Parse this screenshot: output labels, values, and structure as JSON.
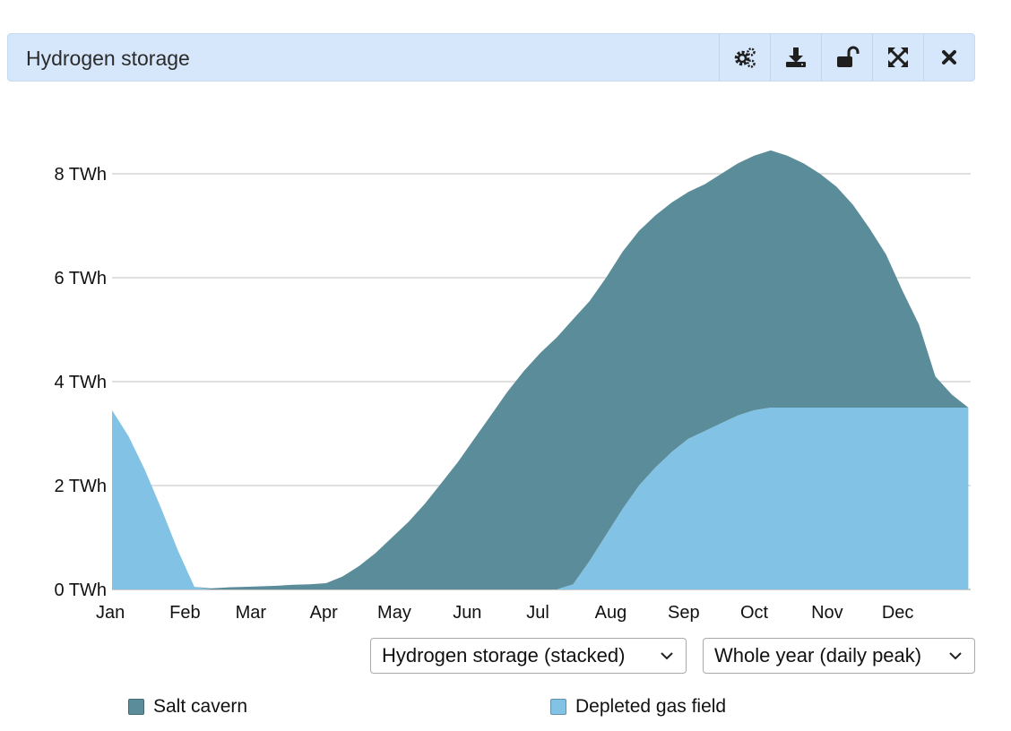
{
  "header": {
    "title": "Hydrogen storage"
  },
  "toolbar": {
    "buttons": [
      {
        "name": "settings-button",
        "icon": "gears-icon"
      },
      {
        "name": "download-button",
        "icon": "download-icon"
      },
      {
        "name": "lock-button",
        "icon": "unlock-icon"
      },
      {
        "name": "expand-button",
        "icon": "expand-icon"
      },
      {
        "name": "close-button",
        "icon": "close-icon"
      }
    ]
  },
  "controls": {
    "chart_select": {
      "value": "Hydrogen storage (stacked)"
    },
    "period_select": {
      "value": "Whole year (daily peak)"
    }
  },
  "legend": [
    {
      "label": "Salt cavern",
      "color": "#5b8c99"
    },
    {
      "label": "Depleted gas field",
      "color": "#82c3e5"
    }
  ],
  "chart_data": {
    "type": "area",
    "stacked": true,
    "x_ticks": [
      "Jan",
      "Feb",
      "Mar",
      "Apr",
      "May",
      "Jun",
      "Jul",
      "Aug",
      "Sep",
      "Oct",
      "Nov",
      "Dec"
    ],
    "y_ticks": [
      "0 TWh",
      "2 TWh",
      "4 TWh",
      "6 TWh",
      "8 TWh"
    ],
    "ylim": [
      0,
      9
    ],
    "y_unit": "TWh",
    "grid": true,
    "legend_position": "bottom",
    "x_days": [
      0,
      7,
      14,
      21,
      28,
      35,
      42,
      49,
      56,
      63,
      70,
      77,
      84,
      91,
      98,
      105,
      112,
      119,
      126,
      133,
      140,
      147,
      154,
      161,
      168,
      175,
      182,
      189,
      196,
      203,
      210,
      217,
      224,
      231,
      238,
      245,
      252,
      259,
      266,
      273,
      280,
      287,
      294,
      301,
      308,
      315,
      322,
      329,
      336,
      343,
      350,
      357,
      364
    ],
    "series": [
      {
        "name": "Depleted gas field",
        "color": "#82c3e5",
        "values": [
          3.45,
          2.95,
          2.3,
          1.55,
          0.75,
          0.05,
          0,
          0,
          0,
          0,
          0,
          0,
          0,
          0,
          0,
          0,
          0,
          0,
          0,
          0,
          0,
          0,
          0,
          0,
          0,
          0,
          0,
          0,
          0.1,
          0.55,
          1.05,
          1.55,
          2.0,
          2.35,
          2.65,
          2.9,
          3.05,
          3.2,
          3.35,
          3.45,
          3.5,
          3.5,
          3.5,
          3.5,
          3.5,
          3.5,
          3.5,
          3.5,
          3.5,
          3.5,
          3.5,
          3.5,
          3.5
        ]
      },
      {
        "name": "Salt cavern",
        "color": "#5b8c99",
        "values": [
          0,
          0,
          0,
          0,
          0,
          0,
          0.02,
          0.04,
          0.05,
          0.06,
          0.07,
          0.09,
          0.1,
          0.12,
          0.25,
          0.45,
          0.7,
          1.0,
          1.3,
          1.65,
          2.05,
          2.45,
          2.9,
          3.35,
          3.8,
          4.2,
          4.55,
          4.85,
          5.1,
          5.0,
          4.95,
          4.95,
          4.9,
          4.85,
          4.8,
          4.75,
          4.75,
          4.8,
          4.85,
          4.9,
          4.95,
          4.85,
          4.7,
          4.5,
          4.25,
          3.9,
          3.45,
          2.95,
          2.25,
          1.6,
          0.6,
          0.25,
          0.0
        ]
      }
    ]
  }
}
